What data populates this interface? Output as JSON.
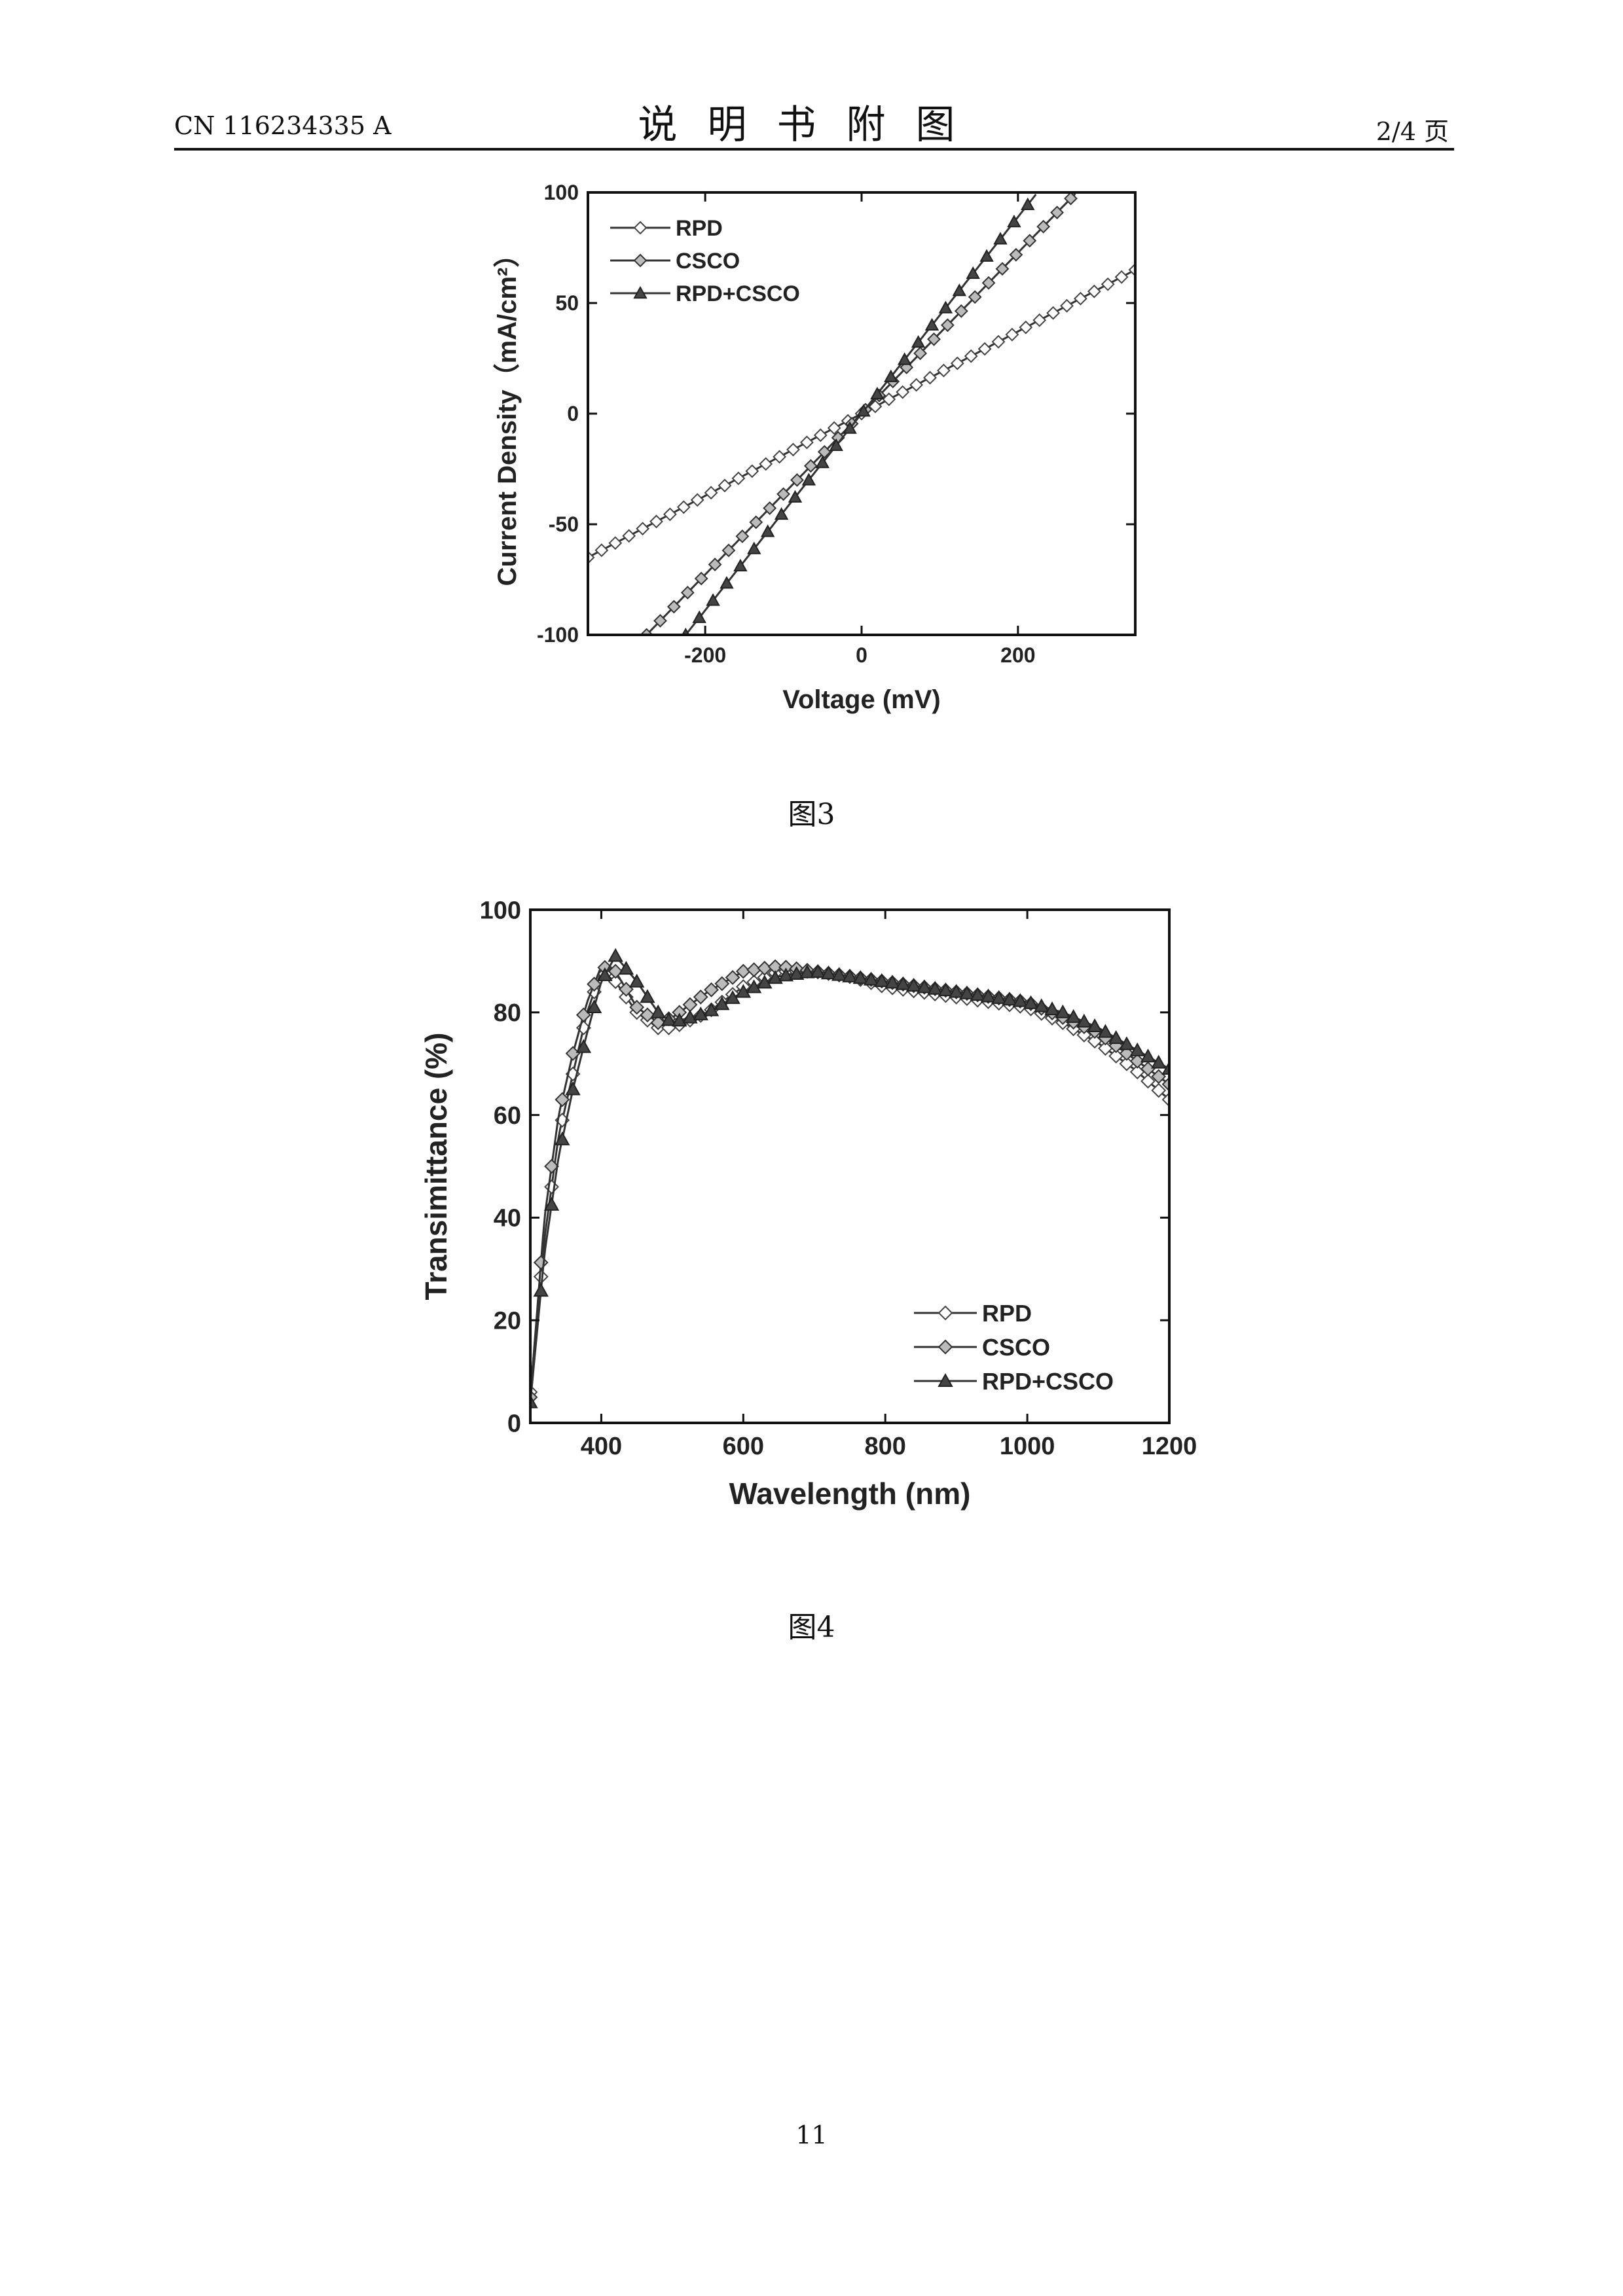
{
  "header": {
    "doc_number": "CN 116234335 A",
    "title": "说明书附图",
    "page_of": "2/4 页"
  },
  "figures": [
    {
      "caption": "图3"
    },
    {
      "caption": "图4"
    }
  ],
  "page_number": "11",
  "chart_data": [
    {
      "type": "line",
      "title": "",
      "xlabel": "Voltage (mV)",
      "ylabel": "Current Density（mA/cm²）",
      "xlim": [
        -350,
        350
      ],
      "ylim": [
        -100,
        100
      ],
      "xticks": [
        "-200",
        "0",
        "200"
      ],
      "xtick_values": [
        -200,
        0,
        200
      ],
      "yticks": [
        "100",
        "50",
        "0",
        "-50",
        "-100"
      ],
      "ytick_values": [
        100,
        50,
        0,
        -50,
        -100
      ],
      "grid": false,
      "legend_position": "top-left",
      "series": [
        {
          "name": "RPD",
          "marker": "diamond-x",
          "x": [
            -350,
            350
          ],
          "y": [
            -65,
            65
          ]
        },
        {
          "name": "CSCO",
          "marker": "diamond",
          "x": [
            -275,
            275
          ],
          "y": [
            -100,
            100
          ]
        },
        {
          "name": "RPD+CSCO",
          "marker": "triangle",
          "x": [
            -225,
            225
          ],
          "y": [
            -100,
            100
          ]
        }
      ]
    },
    {
      "type": "line",
      "title": "",
      "xlabel": "Wavelength (nm)",
      "ylabel": "Transimittance (%)",
      "xlim": [
        300,
        1200
      ],
      "ylim": [
        0,
        100
      ],
      "xticks": [
        "400",
        "600",
        "800",
        "1000",
        "1200"
      ],
      "xtick_values": [
        400,
        600,
        800,
        1000,
        1200
      ],
      "yticks": [
        "100",
        "80",
        "60",
        "40",
        "20",
        "0"
      ],
      "ytick_values": [
        100,
        80,
        60,
        40,
        20,
        0
      ],
      "grid": false,
      "legend_position": "bottom-right",
      "series": [
        {
          "name": "RPD",
          "marker": "diamond-x",
          "x": [
            300,
            320,
            340,
            360,
            380,
            400,
            420,
            450,
            480,
            500,
            550,
            600,
            650,
            700,
            750,
            800,
            850,
            900,
            950,
            1000,
            1050,
            1100,
            1150,
            1200
          ],
          "y": [
            6,
            36,
            56,
            68,
            80,
            88,
            86,
            80,
            77,
            77,
            80,
            85,
            88,
            88,
            87,
            85,
            84,
            83,
            82,
            81,
            78,
            74,
            69,
            63
          ]
        },
        {
          "name": "CSCO",
          "marker": "diamond",
          "x": [
            300,
            320,
            340,
            360,
            380,
            400,
            420,
            450,
            480,
            500,
            550,
            600,
            650,
            700,
            750,
            800,
            850,
            900,
            950,
            1000,
            1050,
            1100,
            1150,
            1200
          ],
          "y": [
            5,
            40,
            60,
            72,
            82,
            89,
            88,
            81,
            78,
            79,
            84,
            88,
            89,
            88,
            87,
            86,
            85,
            84,
            83,
            82,
            79,
            76,
            71,
            66
          ]
        },
        {
          "name": "RPD+CSCO",
          "marker": "triangle",
          "x": [
            300,
            320,
            340,
            360,
            380,
            400,
            420,
            450,
            480,
            500,
            550,
            600,
            650,
            700,
            750,
            800,
            850,
            900,
            950,
            1000,
            1050,
            1100,
            1150,
            1200
          ],
          "y": [
            4,
            33,
            52,
            65,
            76,
            86,
            91,
            86,
            80,
            78,
            80,
            84,
            87,
            88,
            87,
            86,
            85,
            84,
            83,
            82,
            80,
            77,
            73,
            69
          ]
        }
      ]
    }
  ]
}
